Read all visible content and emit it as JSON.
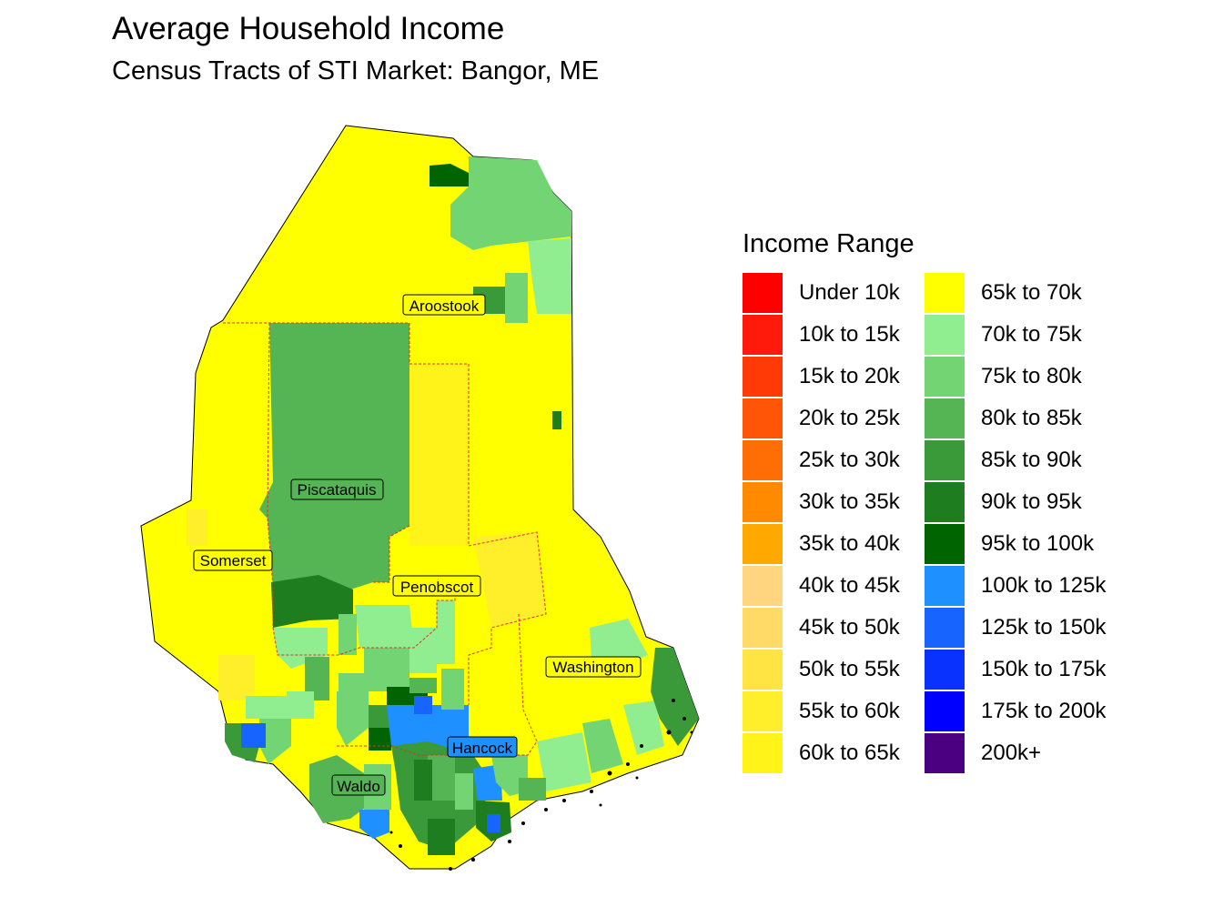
{
  "title": "Average Household Income",
  "subtitle": "Census Tracts of STI Market: Bangor, ME",
  "legend": {
    "title": "Income Range",
    "items": [
      {
        "label": "Under 10k",
        "color": "#FF0000"
      },
      {
        "label": "10k to 15k",
        "color": "#FF1A0C"
      },
      {
        "label": "15k to 20k",
        "color": "#FF3A06"
      },
      {
        "label": "20k to 25k",
        "color": "#FF5506"
      },
      {
        "label": "25k to 30k",
        "color": "#FF6E04"
      },
      {
        "label": "30k to 35k",
        "color": "#FF8A00"
      },
      {
        "label": "35k to 40k",
        "color": "#FFA800"
      },
      {
        "label": "40k to 45k",
        "color": "#FFD580"
      },
      {
        "label": "45k to 50k",
        "color": "#FFDA66"
      },
      {
        "label": "50k to 55k",
        "color": "#FFE444"
      },
      {
        "label": "55k to 60k",
        "color": "#FFEE2A"
      },
      {
        "label": "60k to 65k",
        "color": "#FFF31A"
      },
      {
        "label": "65k to 70k",
        "color": "#FFFF00"
      },
      {
        "label": "70k to 75k",
        "color": "#90EE90"
      },
      {
        "label": "75k to 80k",
        "color": "#72D472"
      },
      {
        "label": "80k to 85k",
        "color": "#55B555"
      },
      {
        "label": "85k to 90k",
        "color": "#3A9A3A"
      },
      {
        "label": "90k to 95k",
        "color": "#1E7D1E"
      },
      {
        "label": "95k to 100k",
        "color": "#006400"
      },
      {
        "label": "100k to 125k",
        "color": "#1E90FF"
      },
      {
        "label": "125k to 150k",
        "color": "#1864FF"
      },
      {
        "label": "150k to 175k",
        "color": "#0A32FF"
      },
      {
        "label": "175k to 200k",
        "color": "#0000FF"
      },
      {
        "label": "200k+",
        "color": "#4B0082"
      }
    ]
  },
  "counties": [
    {
      "name": "Aroostook"
    },
    {
      "name": "Piscataquis"
    },
    {
      "name": "Somerset"
    },
    {
      "name": "Penobscot"
    },
    {
      "name": "Washington"
    },
    {
      "name": "Hancock"
    },
    {
      "name": "Waldo"
    }
  ]
}
